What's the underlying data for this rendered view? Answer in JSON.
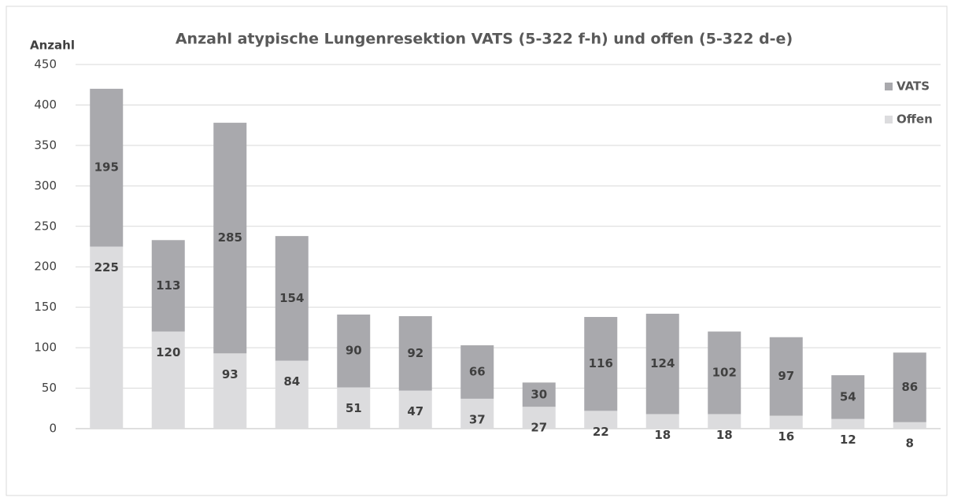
{
  "chart_data": {
    "type": "stacked_bar",
    "title": "Anzahl atypische Lungenresektion VATS (5-322 f-h) und offen (5-322 d-e)",
    "y_label": "Anzahl",
    "categories": [
      null,
      null,
      null,
      null,
      null,
      null,
      null,
      null,
      null,
      null,
      null,
      null,
      null,
      null
    ],
    "series": [
      {
        "name": "Offen",
        "color": "#dcdcde",
        "values": [
          225,
          120,
          93,
          84,
          51,
          47,
          37,
          27,
          22,
          18,
          18,
          16,
          12,
          8
        ]
      },
      {
        "name": "VATS",
        "color": "#a9a9ad",
        "values": [
          195,
          113,
          285,
          154,
          90,
          92,
          66,
          30,
          116,
          124,
          102,
          97,
          54,
          86
        ]
      }
    ],
    "ylim": [
      0,
      450
    ],
    "yticks": [
      0,
      50,
      100,
      150,
      200,
      250,
      300,
      350,
      400,
      450
    ],
    "grid": true,
    "legend": "top-right"
  }
}
